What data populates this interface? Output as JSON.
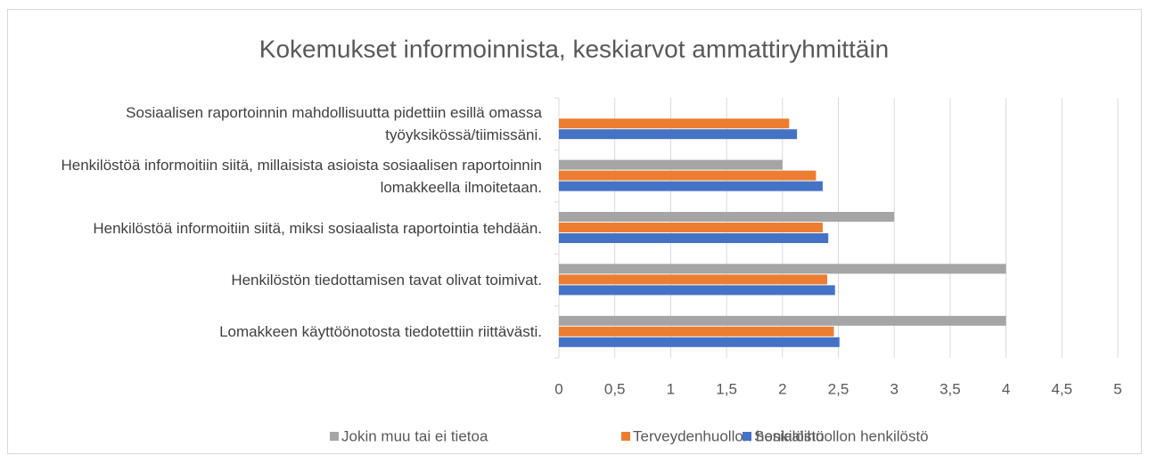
{
  "chart_data": {
    "type": "hbar",
    "title": "Kokemukset informoinnista, keskiarvot ammattiryhmittäin",
    "categories": [
      "Sosiaalisen raportoinnin mahdollisuutta pidettiin esillä omassa työyksikössä/tiimissäni.",
      "Henkilöstöä informoitiin siitä, millaisista asioista sosiaalisen raportoinnin lomakkeella ilmoitetaan.",
      "Henkilöstöä informoitiin siitä, miksi sosiaalista raportointia tehdään.",
      "Henkilöstön tiedottamisen tavat olivat toimivat.",
      "Lomakkeen käyttöönotosta tiedotettiin riittävästi."
    ],
    "series": [
      {
        "name": "Jokin muu tai ei tietoa",
        "color": "#a5a5a5",
        "values": [
          null,
          2.0,
          3.0,
          4.0,
          4.0
        ]
      },
      {
        "name": "Terveydenhuollon henkilöstö",
        "color": "#ed7d31",
        "values": [
          2.06,
          2.3,
          2.36,
          2.4,
          2.46
        ]
      },
      {
        "name": "Sosiaalihuollon henkilöstö",
        "color": "#4472c4",
        "values": [
          2.13,
          2.36,
          2.41,
          2.47,
          2.51
        ]
      }
    ],
    "xlim": [
      0,
      5
    ],
    "xticks": [
      0,
      {
        "value": 0.5,
        "label": "0,5"
      },
      1,
      {
        "value": 1.5,
        "label": "1,5"
      },
      2,
      {
        "value": 2.5,
        "label": "2,5"
      },
      3,
      {
        "value": 3.5,
        "label": "3,5"
      },
      4,
      {
        "value": 4.5,
        "label": "4,5"
      },
      5
    ],
    "grid": true,
    "legend": "bottom"
  }
}
